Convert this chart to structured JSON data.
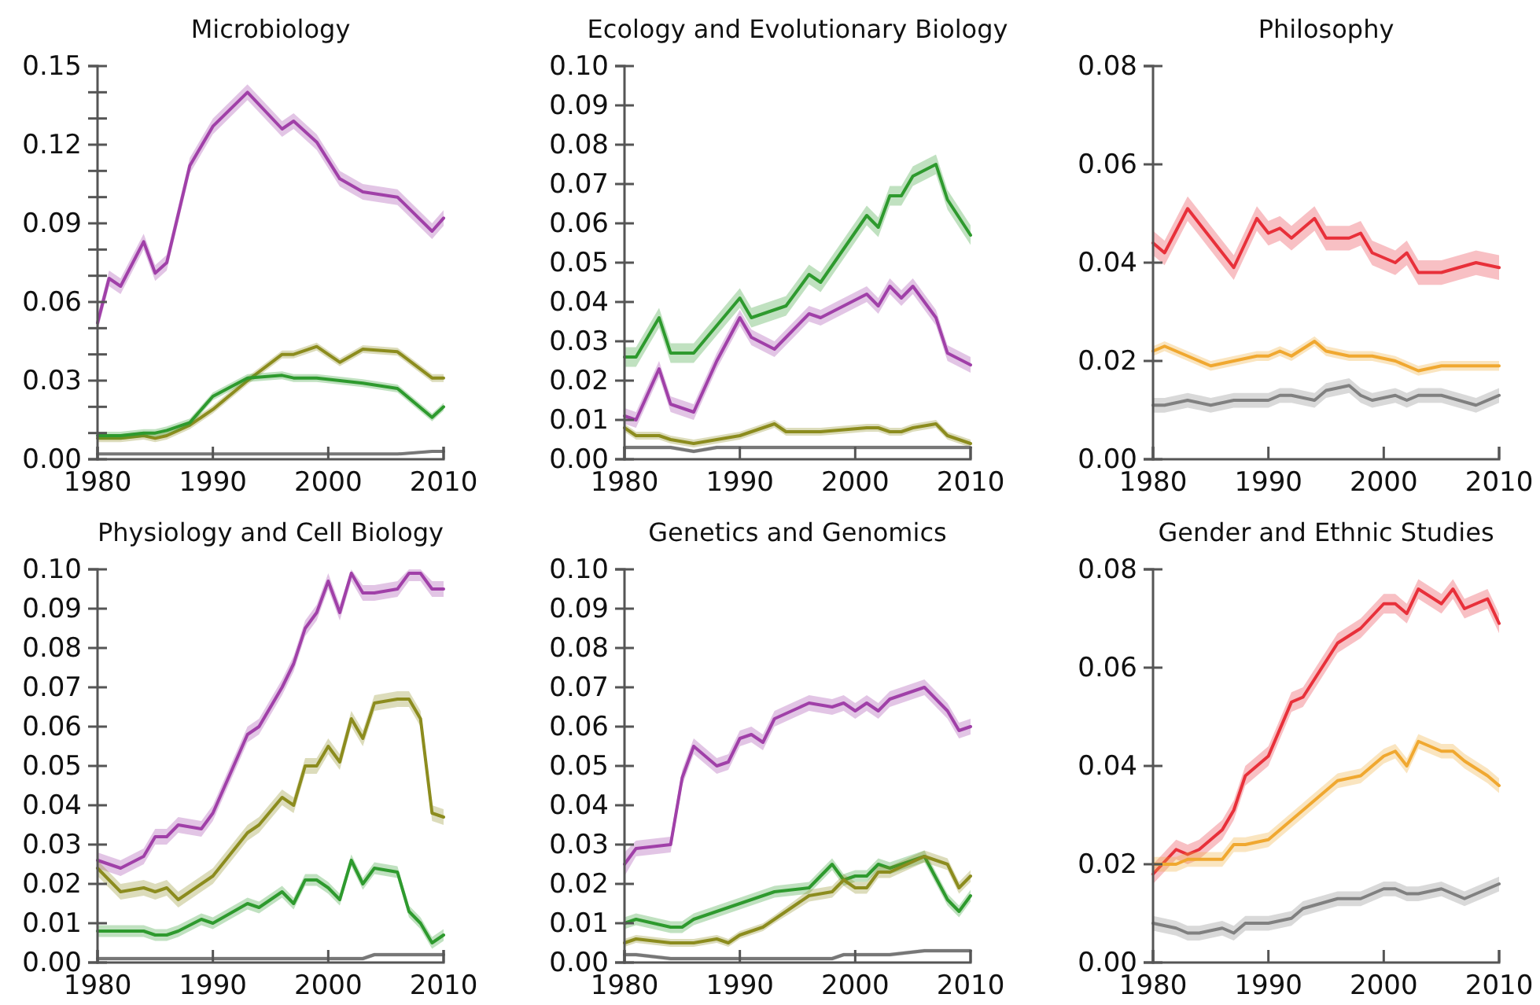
{
  "chart_data": [
    {
      "type": "line",
      "title": "Microbiology",
      "x": [
        1980,
        1981,
        1982,
        1984,
        1985,
        1986,
        1988,
        1990,
        1993,
        1996,
        1997,
        1999,
        2001,
        2003,
        2006,
        2009,
        2010
      ],
      "xlim": [
        1980,
        2010
      ],
      "xticks": [
        1980,
        1990,
        2000,
        2010
      ],
      "ylim": [
        0,
        0.15
      ],
      "yticks": [
        {
          "value": 0,
          "label": "0.00"
        },
        {
          "value": 0.01,
          "label": null
        },
        {
          "value": 0.02,
          "label": null
        },
        {
          "value": 0.03,
          "label": "0.03"
        },
        {
          "value": 0.04,
          "label": null
        },
        {
          "value": 0.05,
          "label": null
        },
        {
          "value": 0.06,
          "label": "0.06"
        },
        {
          "value": 0.07,
          "label": null
        },
        {
          "value": 0.08,
          "label": null
        },
        {
          "value": 0.09,
          "label": "0.09"
        },
        {
          "value": 0.1,
          "label": null
        },
        {
          "value": 0.11,
          "label": null
        },
        {
          "value": 0.12,
          "label": "0.12"
        },
        {
          "value": 0.13,
          "label": null
        },
        {
          "value": 0.14,
          "label": null
        },
        {
          "value": 0.15,
          "label": "0.15"
        }
      ],
      "series": [
        {
          "color": "#a040a8",
          "values": [
            0.052,
            0.069,
            0.066,
            0.083,
            0.071,
            0.075,
            0.112,
            0.127,
            0.14,
            0.126,
            0.129,
            0.121,
            0.107,
            0.102,
            0.1,
            0.087,
            0.092
          ],
          "lower": [
            0.049,
            0.066,
            0.063,
            0.08,
            0.068,
            0.072,
            0.109,
            0.124,
            0.137,
            0.123,
            0.126,
            0.118,
            0.104,
            0.099,
            0.097,
            0.084,
            0.089
          ],
          "upper": [
            0.055,
            0.072,
            0.069,
            0.086,
            0.074,
            0.078,
            0.115,
            0.13,
            0.143,
            0.129,
            0.132,
            0.124,
            0.11,
            0.105,
            0.103,
            0.09,
            0.095
          ]
        },
        {
          "color": "#8c8c1e",
          "values": [
            0.008,
            0.008,
            0.008,
            0.009,
            0.008,
            0.009,
            0.013,
            0.019,
            0.03,
            0.04,
            0.04,
            0.043,
            0.037,
            0.042,
            0.041,
            0.031,
            0.031
          ],
          "lower": [
            0.0065,
            0.0065,
            0.0065,
            0.0075,
            0.0065,
            0.0075,
            0.0115,
            0.0175,
            0.0285,
            0.0385,
            0.0385,
            0.0415,
            0.0355,
            0.0405,
            0.0395,
            0.0295,
            0.0295
          ],
          "upper": [
            0.0095,
            0.0095,
            0.0095,
            0.0105,
            0.0095,
            0.0105,
            0.0145,
            0.0205,
            0.0315,
            0.0415,
            0.0415,
            0.0445,
            0.0385,
            0.0435,
            0.0425,
            0.0325,
            0.0325
          ]
        },
        {
          "color": "#2e9a2e",
          "values": [
            0.009,
            0.009,
            0.009,
            0.01,
            0.01,
            0.011,
            0.014,
            0.024,
            0.031,
            0.032,
            0.031,
            0.031,
            0.03,
            0.029,
            0.027,
            0.016,
            0.02
          ],
          "lower": [
            0.0075,
            0.0075,
            0.0075,
            0.0085,
            0.0085,
            0.0095,
            0.0125,
            0.0225,
            0.0295,
            0.0305,
            0.0295,
            0.0295,
            0.0285,
            0.0275,
            0.0255,
            0.0145,
            0.0185
          ],
          "upper": [
            0.0105,
            0.0105,
            0.0105,
            0.0115,
            0.0115,
            0.0125,
            0.0155,
            0.0255,
            0.0325,
            0.0335,
            0.0325,
            0.0325,
            0.0315,
            0.0305,
            0.0285,
            0.0175,
            0.0215
          ]
        },
        {
          "color": "#777777",
          "values": [
            0.002,
            0.002,
            0.002,
            0.002,
            0.002,
            0.002,
            0.002,
            0.002,
            0.002,
            0.002,
            0.002,
            0.002,
            0.002,
            0.002,
            0.002,
            0.003,
            0.003
          ],
          "lower": [
            0.0015,
            0.0015,
            0.0015,
            0.0015,
            0.0015,
            0.0015,
            0.0015,
            0.0015,
            0.0015,
            0.0015,
            0.0015,
            0.0015,
            0.0015,
            0.0015,
            0.0015,
            0.0025,
            0.0025
          ],
          "upper": [
            0.0025,
            0.0025,
            0.0025,
            0.0025,
            0.0025,
            0.0025,
            0.0025,
            0.0025,
            0.0025,
            0.0025,
            0.0025,
            0.0025,
            0.0025,
            0.0025,
            0.0025,
            0.0035,
            0.0035
          ]
        }
      ]
    },
    {
      "type": "line",
      "title": "Ecology and Evolutionary Biology",
      "x": [
        1980,
        1981,
        1983,
        1984,
        1986,
        1988,
        1990,
        1991,
        1993,
        1994,
        1996,
        1997,
        2001,
        2002,
        2003,
        2004,
        2005,
        2007,
        2008,
        2010
      ],
      "xlim": [
        1980,
        2010
      ],
      "xticks": [
        1980,
        1990,
        2000,
        2010
      ],
      "ylim": [
        0,
        0.1
      ],
      "yticks": [
        {
          "value": 0,
          "label": "0.00"
        },
        {
          "value": 0.01,
          "label": "0.01"
        },
        {
          "value": 0.02,
          "label": "0.02"
        },
        {
          "value": 0.03,
          "label": "0.03"
        },
        {
          "value": 0.04,
          "label": "0.04"
        },
        {
          "value": 0.05,
          "label": "0.05"
        },
        {
          "value": 0.06,
          "label": "0.06"
        },
        {
          "value": 0.07,
          "label": "0.07"
        },
        {
          "value": 0.08,
          "label": "0.08"
        },
        {
          "value": 0.09,
          "label": "0.09"
        },
        {
          "value": 0.1,
          "label": "0.10"
        }
      ],
      "series": [
        {
          "color": "#2e9a2e",
          "values": [
            0.026,
            0.026,
            0.036,
            0.027,
            0.027,
            0.034,
            0.041,
            0.036,
            0.038,
            0.039,
            0.047,
            0.045,
            0.062,
            0.059,
            0.067,
            0.067,
            0.072,
            0.075,
            0.066,
            0.057
          ],
          "lower": [
            0.0235,
            0.0235,
            0.0335,
            0.0245,
            0.0245,
            0.0315,
            0.0385,
            0.0335,
            0.0355,
            0.0365,
            0.0445,
            0.0425,
            0.0595,
            0.0565,
            0.0645,
            0.0645,
            0.0695,
            0.0725,
            0.0635,
            0.0545
          ],
          "upper": [
            0.0285,
            0.0285,
            0.0385,
            0.0295,
            0.0295,
            0.0365,
            0.0435,
            0.0385,
            0.0405,
            0.0415,
            0.0495,
            0.0475,
            0.0645,
            0.0615,
            0.0695,
            0.0695,
            0.0745,
            0.0775,
            0.0685,
            0.0595
          ]
        },
        {
          "color": "#a040a8",
          "values": [
            0.011,
            0.01,
            0.023,
            0.014,
            0.012,
            0.025,
            0.036,
            0.031,
            0.028,
            0.031,
            0.037,
            0.036,
            0.042,
            0.039,
            0.044,
            0.041,
            0.044,
            0.036,
            0.027,
            0.024
          ],
          "lower": [
            0.009,
            0.008,
            0.021,
            0.012,
            0.01,
            0.023,
            0.034,
            0.029,
            0.026,
            0.029,
            0.035,
            0.034,
            0.04,
            0.037,
            0.042,
            0.039,
            0.042,
            0.034,
            0.025,
            0.022
          ],
          "upper": [
            0.013,
            0.012,
            0.025,
            0.016,
            0.014,
            0.027,
            0.038,
            0.033,
            0.03,
            0.033,
            0.039,
            0.038,
            0.044,
            0.041,
            0.046,
            0.043,
            0.046,
            0.038,
            0.029,
            0.026
          ]
        },
        {
          "color": "#8c8c1e",
          "values": [
            0.008,
            0.006,
            0.006,
            0.005,
            0.004,
            0.005,
            0.006,
            0.007,
            0.009,
            0.007,
            0.007,
            0.007,
            0.008,
            0.008,
            0.007,
            0.007,
            0.008,
            0.009,
            0.006,
            0.004
          ],
          "lower": [
            0.007,
            0.005,
            0.005,
            0.004,
            0.003,
            0.004,
            0.005,
            0.006,
            0.008,
            0.006,
            0.006,
            0.006,
            0.007,
            0.007,
            0.006,
            0.006,
            0.007,
            0.008,
            0.005,
            0.003
          ],
          "upper": [
            0.009,
            0.007,
            0.007,
            0.006,
            0.005,
            0.006,
            0.007,
            0.008,
            0.01,
            0.008,
            0.008,
            0.008,
            0.009,
            0.009,
            0.008,
            0.008,
            0.009,
            0.01,
            0.007,
            0.005
          ]
        },
        {
          "color": "#777777",
          "values": [
            0.003,
            0.003,
            0.003,
            0.003,
            0.002,
            0.003,
            0.003,
            0.003,
            0.003,
            0.003,
            0.003,
            0.003,
            0.003,
            0.003,
            0.003,
            0.003,
            0.003,
            0.003,
            0.003,
            0.003
          ],
          "lower": [
            0.0025,
            0.0025,
            0.0025,
            0.0025,
            0.0015,
            0.0025,
            0.0025,
            0.0025,
            0.0025,
            0.0025,
            0.0025,
            0.0025,
            0.0025,
            0.0025,
            0.0025,
            0.0025,
            0.0025,
            0.0025,
            0.0025,
            0.0025
          ],
          "upper": [
            0.0035,
            0.0035,
            0.0035,
            0.0035,
            0.0025,
            0.0035,
            0.0035,
            0.0035,
            0.0035,
            0.0035,
            0.0035,
            0.0035,
            0.0035,
            0.0035,
            0.0035,
            0.0035,
            0.0035,
            0.0035,
            0.0035,
            0.0035
          ]
        }
      ]
    },
    {
      "type": "line",
      "title": "Philosophy",
      "x": [
        1980,
        1981,
        1983,
        1985,
        1987,
        1989,
        1990,
        1991,
        1992,
        1994,
        1995,
        1997,
        1998,
        1999,
        2001,
        2002,
        2003,
        2005,
        2008,
        2010
      ],
      "xlim": [
        1980,
        2010
      ],
      "xticks": [
        1980,
        1990,
        2000,
        2010
      ],
      "ylim": [
        0,
        0.08
      ],
      "yticks": [
        {
          "value": 0,
          "label": "0.00"
        },
        {
          "value": 0.02,
          "label": "0.02"
        },
        {
          "value": 0.04,
          "label": "0.04"
        },
        {
          "value": 0.06,
          "label": "0.06"
        },
        {
          "value": 0.08,
          "label": "0.08"
        }
      ],
      "series": [
        {
          "color": "#e8303a",
          "values": [
            0.044,
            0.042,
            0.051,
            0.045,
            0.039,
            0.049,
            0.046,
            0.047,
            0.045,
            0.049,
            0.045,
            0.045,
            0.046,
            0.042,
            0.04,
            0.042,
            0.038,
            0.038,
            0.04,
            0.039
          ],
          "lower": [
            0.0415,
            0.0395,
            0.0485,
            0.0425,
            0.0365,
            0.0465,
            0.0435,
            0.0445,
            0.0425,
            0.0465,
            0.0425,
            0.0425,
            0.0435,
            0.0395,
            0.0375,
            0.0395,
            0.0355,
            0.0355,
            0.0375,
            0.0365
          ],
          "upper": [
            0.0465,
            0.0445,
            0.0535,
            0.0475,
            0.0415,
            0.0515,
            0.0485,
            0.0495,
            0.0475,
            0.0515,
            0.0475,
            0.0475,
            0.0485,
            0.0445,
            0.0425,
            0.0445,
            0.0405,
            0.0405,
            0.0425,
            0.0415
          ]
        },
        {
          "color": "#f0a830",
          "values": [
            0.022,
            0.023,
            0.021,
            0.019,
            0.02,
            0.021,
            0.021,
            0.022,
            0.021,
            0.024,
            0.022,
            0.021,
            0.021,
            0.021,
            0.02,
            0.019,
            0.018,
            0.019,
            0.019,
            0.019
          ],
          "lower": [
            0.021,
            0.022,
            0.02,
            0.018,
            0.019,
            0.02,
            0.02,
            0.021,
            0.02,
            0.023,
            0.021,
            0.02,
            0.02,
            0.02,
            0.019,
            0.018,
            0.017,
            0.018,
            0.018,
            0.018
          ],
          "upper": [
            0.023,
            0.024,
            0.022,
            0.02,
            0.021,
            0.022,
            0.022,
            0.023,
            0.022,
            0.025,
            0.023,
            0.022,
            0.022,
            0.022,
            0.021,
            0.02,
            0.019,
            0.02,
            0.02,
            0.02
          ]
        },
        {
          "color": "#808080",
          "values": [
            0.011,
            0.011,
            0.012,
            0.011,
            0.012,
            0.012,
            0.012,
            0.013,
            0.013,
            0.012,
            0.014,
            0.015,
            0.013,
            0.012,
            0.013,
            0.012,
            0.013,
            0.013,
            0.011,
            0.013
          ],
          "lower": [
            0.0095,
            0.0095,
            0.0105,
            0.0095,
            0.0105,
            0.0105,
            0.0105,
            0.0115,
            0.0115,
            0.0105,
            0.0125,
            0.0135,
            0.0115,
            0.0105,
            0.0115,
            0.0105,
            0.0115,
            0.0115,
            0.0095,
            0.0115
          ],
          "upper": [
            0.0125,
            0.0125,
            0.0135,
            0.0125,
            0.0135,
            0.0135,
            0.0135,
            0.0145,
            0.0145,
            0.0135,
            0.0155,
            0.0165,
            0.0145,
            0.0135,
            0.0145,
            0.0135,
            0.0145,
            0.0145,
            0.0125,
            0.0145
          ]
        }
      ]
    },
    {
      "type": "line",
      "title": "Physiology and Cell Biology",
      "x": [
        1980,
        1982,
        1984,
        1985,
        1986,
        1987,
        1989,
        1990,
        1993,
        1994,
        1996,
        1997,
        1998,
        1999,
        2000,
        2001,
        2002,
        2003,
        2004,
        2006,
        2007,
        2008,
        2009,
        2010
      ],
      "xlim": [
        1980,
        2010
      ],
      "xticks": [
        1980,
        1990,
        2000,
        2010
      ],
      "ylim": [
        0,
        0.1
      ],
      "yticks": [
        {
          "value": 0,
          "label": "0.00"
        },
        {
          "value": 0.01,
          "label": "0.01"
        },
        {
          "value": 0.02,
          "label": "0.02"
        },
        {
          "value": 0.03,
          "label": "0.03"
        },
        {
          "value": 0.04,
          "label": "0.04"
        },
        {
          "value": 0.05,
          "label": "0.05"
        },
        {
          "value": 0.06,
          "label": "0.06"
        },
        {
          "value": 0.07,
          "label": "0.07"
        },
        {
          "value": 0.08,
          "label": "0.08"
        },
        {
          "value": 0.09,
          "label": "0.09"
        },
        {
          "value": 0.1,
          "label": "0.10"
        }
      ],
      "series": [
        {
          "color": "#a040a8",
          "values": [
            0.026,
            0.024,
            0.027,
            0.032,
            0.032,
            0.035,
            0.034,
            0.038,
            0.058,
            0.06,
            0.07,
            0.076,
            0.085,
            0.089,
            0.097,
            0.089,
            0.099,
            0.094,
            0.094,
            0.095,
            0.099,
            0.099,
            0.095,
            0.095
          ],
          "lower": [
            0.024,
            0.022,
            0.025,
            0.03,
            0.03,
            0.033,
            0.032,
            0.036,
            0.056,
            0.058,
            0.068,
            0.074,
            0.083,
            0.087,
            0.095,
            0.087,
            0.097,
            0.092,
            0.092,
            0.093,
            0.097,
            0.097,
            0.093,
            0.093
          ],
          "upper": [
            0.028,
            0.026,
            0.029,
            0.034,
            0.034,
            0.037,
            0.036,
            0.04,
            0.06,
            0.062,
            0.072,
            0.078,
            0.087,
            0.091,
            0.099,
            0.091,
            0.1,
            0.096,
            0.096,
            0.097,
            0.1,
            0.1,
            0.097,
            0.097
          ]
        },
        {
          "color": "#8c8c1e",
          "values": [
            0.024,
            0.018,
            0.019,
            0.018,
            0.019,
            0.016,
            0.02,
            0.022,
            0.033,
            0.035,
            0.042,
            0.04,
            0.05,
            0.05,
            0.055,
            0.051,
            0.062,
            0.057,
            0.066,
            0.067,
            0.067,
            0.062,
            0.038,
            0.037
          ],
          "lower": [
            0.022,
            0.016,
            0.017,
            0.016,
            0.017,
            0.014,
            0.018,
            0.02,
            0.031,
            0.033,
            0.04,
            0.038,
            0.048,
            0.048,
            0.053,
            0.049,
            0.06,
            0.055,
            0.064,
            0.065,
            0.065,
            0.06,
            0.036,
            0.035
          ],
          "upper": [
            0.026,
            0.02,
            0.021,
            0.02,
            0.021,
            0.018,
            0.022,
            0.024,
            0.035,
            0.037,
            0.044,
            0.042,
            0.052,
            0.052,
            0.057,
            0.053,
            0.064,
            0.059,
            0.068,
            0.069,
            0.069,
            0.064,
            0.04,
            0.039
          ]
        },
        {
          "color": "#2e9a2e",
          "values": [
            0.008,
            0.008,
            0.008,
            0.007,
            0.007,
            0.008,
            0.011,
            0.01,
            0.015,
            0.014,
            0.018,
            0.015,
            0.021,
            0.021,
            0.019,
            0.016,
            0.026,
            0.02,
            0.024,
            0.023,
            0.013,
            0.01,
            0.005,
            0.007
          ],
          "lower": [
            0.0065,
            0.0065,
            0.0065,
            0.0055,
            0.0055,
            0.0065,
            0.0095,
            0.0085,
            0.0135,
            0.0125,
            0.0165,
            0.0135,
            0.0195,
            0.0195,
            0.0175,
            0.0145,
            0.0245,
            0.0185,
            0.0225,
            0.0215,
            0.0115,
            0.0085,
            0.0035,
            0.0055
          ],
          "upper": [
            0.0095,
            0.0095,
            0.0095,
            0.0085,
            0.0085,
            0.0095,
            0.0125,
            0.0115,
            0.0165,
            0.0155,
            0.0195,
            0.0165,
            0.0225,
            0.0225,
            0.0205,
            0.0175,
            0.0275,
            0.0215,
            0.0255,
            0.0245,
            0.0145,
            0.0115,
            0.0065,
            0.0085
          ]
        },
        {
          "color": "#777777",
          "values": [
            0.001,
            0.001,
            0.001,
            0.001,
            0.001,
            0.001,
            0.001,
            0.001,
            0.001,
            0.001,
            0.001,
            0.001,
            0.001,
            0.001,
            0.001,
            0.001,
            0.001,
            0.001,
            0.002,
            0.002,
            0.002,
            0.002,
            0.002,
            0.002
          ],
          "lower": [
            0.0005,
            0.0005,
            0.0005,
            0.0005,
            0.0005,
            0.0005,
            0.0005,
            0.0005,
            0.0005,
            0.0005,
            0.0005,
            0.0005,
            0.0005,
            0.0005,
            0.0005,
            0.0005,
            0.0005,
            0.0005,
            0.0015,
            0.0015,
            0.0015,
            0.0015,
            0.0015,
            0.0015
          ],
          "upper": [
            0.0015,
            0.0015,
            0.0015,
            0.0015,
            0.0015,
            0.0015,
            0.0015,
            0.0015,
            0.0015,
            0.0015,
            0.0015,
            0.0015,
            0.0015,
            0.0015,
            0.0015,
            0.0015,
            0.0015,
            0.0015,
            0.0025,
            0.0025,
            0.0025,
            0.0025,
            0.0025,
            0.0025
          ]
        }
      ]
    },
    {
      "type": "line",
      "title": "Genetics and Genomics",
      "x": [
        1980,
        1981,
        1984,
        1985,
        1986,
        1988,
        1989,
        1990,
        1991,
        1992,
        1993,
        1996,
        1998,
        1999,
        2000,
        2001,
        2002,
        2003,
        2006,
        2008,
        2009,
        2010
      ],
      "xlim": [
        1980,
        2010
      ],
      "xticks": [
        1980,
        1990,
        2000,
        2010
      ],
      "ylim": [
        0,
        0.1
      ],
      "yticks": [
        {
          "value": 0,
          "label": "0.00"
        },
        {
          "value": 0.01,
          "label": "0.01"
        },
        {
          "value": 0.02,
          "label": "0.02"
        },
        {
          "value": 0.03,
          "label": "0.03"
        },
        {
          "value": 0.04,
          "label": "0.04"
        },
        {
          "value": 0.05,
          "label": "0.05"
        },
        {
          "value": 0.06,
          "label": "0.06"
        },
        {
          "value": 0.07,
          "label": "0.07"
        },
        {
          "value": 0.08,
          "label": "0.08"
        },
        {
          "value": 0.09,
          "label": "0.09"
        },
        {
          "value": 0.1,
          "label": "0.10"
        }
      ],
      "series": [
        {
          "color": "#a040a8",
          "values": [
            0.025,
            0.029,
            0.03,
            0.047,
            0.055,
            0.05,
            0.051,
            0.057,
            0.058,
            0.056,
            0.062,
            0.066,
            0.065,
            0.066,
            0.064,
            0.066,
            0.064,
            0.067,
            0.07,
            0.064,
            0.059,
            0.06
          ],
          "lower": [
            0.022,
            0.027,
            0.028,
            0.045,
            0.053,
            0.048,
            0.049,
            0.055,
            0.056,
            0.054,
            0.06,
            0.064,
            0.063,
            0.064,
            0.062,
            0.064,
            0.062,
            0.065,
            0.068,
            0.062,
            0.057,
            0.058
          ],
          "upper": [
            0.028,
            0.031,
            0.032,
            0.049,
            0.057,
            0.052,
            0.053,
            0.059,
            0.06,
            0.058,
            0.064,
            0.068,
            0.067,
            0.068,
            0.066,
            0.068,
            0.066,
            0.069,
            0.072,
            0.066,
            0.061,
            0.062
          ]
        },
        {
          "color": "#2e9a2e",
          "values": [
            0.01,
            0.011,
            0.009,
            0.009,
            0.011,
            0.013,
            0.014,
            0.015,
            0.016,
            0.017,
            0.018,
            0.019,
            0.025,
            0.021,
            0.022,
            0.022,
            0.025,
            0.024,
            0.027,
            0.016,
            0.013,
            0.017
          ],
          "lower": [
            0.0085,
            0.0095,
            0.0075,
            0.0075,
            0.0095,
            0.0115,
            0.0125,
            0.0135,
            0.0145,
            0.0155,
            0.0165,
            0.0175,
            0.0235,
            0.0195,
            0.0205,
            0.0205,
            0.0235,
            0.0225,
            0.0255,
            0.0145,
            0.0115,
            0.0155
          ],
          "upper": [
            0.0115,
            0.0125,
            0.0105,
            0.0105,
            0.0125,
            0.0145,
            0.0155,
            0.0165,
            0.0175,
            0.0185,
            0.0195,
            0.0205,
            0.0265,
            0.0225,
            0.0235,
            0.0235,
            0.0265,
            0.0255,
            0.0285,
            0.0175,
            0.0145,
            0.0185
          ]
        },
        {
          "color": "#8c8c1e",
          "values": [
            0.005,
            0.006,
            0.005,
            0.005,
            0.005,
            0.006,
            0.005,
            0.007,
            0.008,
            0.009,
            0.011,
            0.017,
            0.018,
            0.021,
            0.019,
            0.019,
            0.023,
            0.023,
            0.027,
            0.025,
            0.019,
            0.022
          ],
          "lower": [
            0.004,
            0.005,
            0.004,
            0.004,
            0.004,
            0.005,
            0.004,
            0.006,
            0.007,
            0.008,
            0.01,
            0.0155,
            0.0165,
            0.0195,
            0.0175,
            0.0175,
            0.0215,
            0.0215,
            0.0255,
            0.0235,
            0.0175,
            0.0205
          ],
          "upper": [
            0.006,
            0.007,
            0.006,
            0.006,
            0.006,
            0.007,
            0.006,
            0.008,
            0.009,
            0.01,
            0.012,
            0.0185,
            0.0195,
            0.0225,
            0.0205,
            0.0205,
            0.0245,
            0.0245,
            0.0285,
            0.0265,
            0.0205,
            0.0235
          ]
        },
        {
          "color": "#777777",
          "values": [
            0.002,
            0.002,
            0.001,
            0.001,
            0.001,
            0.001,
            0.001,
            0.001,
            0.001,
            0.001,
            0.001,
            0.001,
            0.001,
            0.002,
            0.002,
            0.002,
            0.002,
            0.002,
            0.003,
            0.003,
            0.003,
            0.003
          ],
          "lower": [
            0.0015,
            0.0015,
            0.0005,
            0.0005,
            0.0005,
            0.0005,
            0.0005,
            0.0005,
            0.0005,
            0.0005,
            0.0005,
            0.0005,
            0.0005,
            0.0015,
            0.0015,
            0.0015,
            0.0015,
            0.0015,
            0.0025,
            0.0025,
            0.0025,
            0.0025
          ],
          "upper": [
            0.0025,
            0.0025,
            0.0015,
            0.0015,
            0.0015,
            0.0015,
            0.0015,
            0.0015,
            0.0015,
            0.0015,
            0.0015,
            0.0015,
            0.0015,
            0.0025,
            0.0025,
            0.0025,
            0.0025,
            0.0025,
            0.0035,
            0.0035,
            0.0035,
            0.0035
          ]
        }
      ]
    },
    {
      "type": "line",
      "title": "Gender and Ethnic Studies",
      "x": [
        1980,
        1982,
        1983,
        1984,
        1986,
        1987,
        1988,
        1990,
        1992,
        1993,
        1996,
        1998,
        2000,
        2001,
        2002,
        2003,
        2005,
        2006,
        2007,
        2009,
        2010
      ],
      "xlim": [
        1980,
        2010
      ],
      "xticks": [
        1980,
        1990,
        2000,
        2010
      ],
      "ylim": [
        0,
        0.08
      ],
      "yticks": [
        {
          "value": 0,
          "label": "0.00"
        },
        {
          "value": 0.02,
          "label": "0.02"
        },
        {
          "value": 0.04,
          "label": "0.04"
        },
        {
          "value": 0.06,
          "label": "0.06"
        },
        {
          "value": 0.08,
          "label": "0.08"
        }
      ],
      "series": [
        {
          "color": "#e8303a",
          "values": [
            0.018,
            0.023,
            0.022,
            0.023,
            0.027,
            0.031,
            0.038,
            0.042,
            0.053,
            0.054,
            0.065,
            0.068,
            0.073,
            0.073,
            0.071,
            0.076,
            0.073,
            0.076,
            0.072,
            0.074,
            0.069
          ],
          "lower": [
            0.016,
            0.021,
            0.02,
            0.021,
            0.025,
            0.029,
            0.036,
            0.04,
            0.051,
            0.052,
            0.063,
            0.066,
            0.071,
            0.071,
            0.069,
            0.074,
            0.071,
            0.074,
            0.07,
            0.072,
            0.067
          ],
          "upper": [
            0.02,
            0.025,
            0.024,
            0.025,
            0.029,
            0.033,
            0.04,
            0.044,
            0.055,
            0.056,
            0.067,
            0.07,
            0.075,
            0.075,
            0.073,
            0.078,
            0.075,
            0.078,
            0.074,
            0.076,
            0.071
          ]
        },
        {
          "color": "#f0a830",
          "values": [
            0.02,
            0.02,
            0.021,
            0.021,
            0.021,
            0.024,
            0.024,
            0.025,
            0.029,
            0.031,
            0.037,
            0.038,
            0.042,
            0.043,
            0.04,
            0.045,
            0.043,
            0.043,
            0.041,
            0.038,
            0.036
          ],
          "lower": [
            0.0185,
            0.0185,
            0.0195,
            0.0195,
            0.0195,
            0.0225,
            0.0225,
            0.0235,
            0.0275,
            0.0295,
            0.0355,
            0.0365,
            0.0405,
            0.0415,
            0.0385,
            0.0435,
            0.0415,
            0.0415,
            0.0395,
            0.0365,
            0.0345
          ],
          "upper": [
            0.0215,
            0.0215,
            0.0225,
            0.0225,
            0.0225,
            0.0255,
            0.0255,
            0.0265,
            0.0305,
            0.0325,
            0.0385,
            0.0395,
            0.0435,
            0.0445,
            0.0415,
            0.0465,
            0.0445,
            0.0445,
            0.0425,
            0.0395,
            0.0375
          ]
        },
        {
          "color": "#808080",
          "values": [
            0.008,
            0.007,
            0.006,
            0.006,
            0.007,
            0.006,
            0.008,
            0.008,
            0.009,
            0.011,
            0.013,
            0.013,
            0.015,
            0.015,
            0.014,
            0.014,
            0.015,
            0.014,
            0.013,
            0.015,
            0.016
          ],
          "lower": [
            0.0065,
            0.0055,
            0.0045,
            0.0045,
            0.0055,
            0.0045,
            0.0065,
            0.0065,
            0.0075,
            0.0095,
            0.0115,
            0.0115,
            0.0135,
            0.0135,
            0.0125,
            0.0125,
            0.0135,
            0.0125,
            0.0115,
            0.0135,
            0.0145
          ],
          "upper": [
            0.0095,
            0.0085,
            0.0075,
            0.0075,
            0.0085,
            0.0075,
            0.0095,
            0.0095,
            0.0105,
            0.0125,
            0.0145,
            0.0145,
            0.0165,
            0.0165,
            0.0155,
            0.0155,
            0.0165,
            0.0155,
            0.0145,
            0.0165,
            0.0175
          ]
        }
      ]
    }
  ]
}
